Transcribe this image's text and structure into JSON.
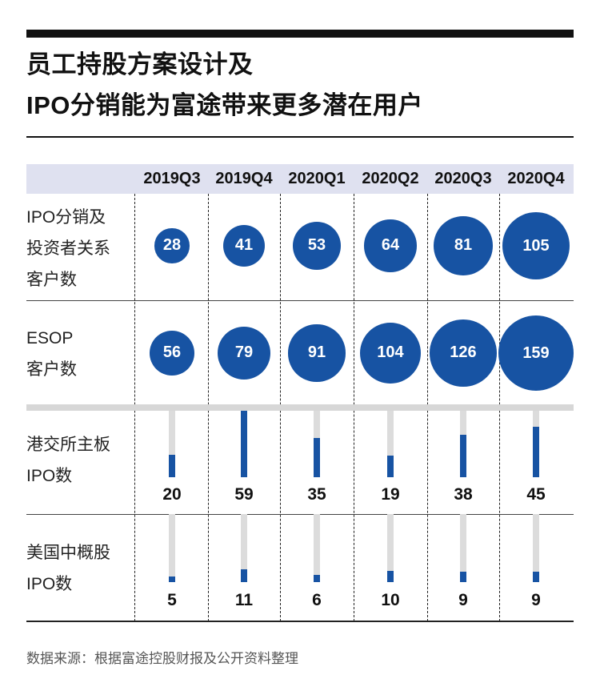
{
  "title_lines": [
    "员工持股方案设计及",
    "IPO分销能为富途带来更多潜在用户"
  ],
  "source": "数据来源：根据富途控股财报及公开资料整理",
  "colors": {
    "accent": "#1753a3",
    "header_band": "#dfe1f0",
    "track": "#dcdcdc"
  },
  "chart_data": {
    "type": "table",
    "categories": [
      "2019Q3",
      "2019Q4",
      "2020Q1",
      "2020Q2",
      "2020Q3",
      "2020Q4"
    ],
    "rows": [
      {
        "label": "IPO分销及\n投资者关系\n客户数",
        "mark": "bubble",
        "values": [
          28,
          41,
          53,
          64,
          81,
          105
        ]
      },
      {
        "label": "ESOP\n客户数",
        "mark": "bubble",
        "values": [
          56,
          79,
          91,
          104,
          126,
          159
        ]
      },
      {
        "label": "港交所主板\nIPO数",
        "mark": "bar",
        "values": [
          20,
          59,
          35,
          19,
          38,
          45
        ]
      },
      {
        "label": "美国中概股\nIPO数",
        "mark": "bar",
        "values": [
          5,
          11,
          6,
          10,
          9,
          9
        ]
      }
    ]
  }
}
